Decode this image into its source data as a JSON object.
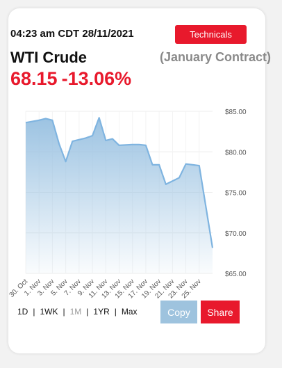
{
  "header": {
    "timestamp": "04:23 am CDT 28/11/2021",
    "technicals_label": "Technicals",
    "instrument": "WTI Crude",
    "contract": "(January Contract)",
    "price": "68.15",
    "change": "-13.06%"
  },
  "ranges": [
    "1D",
    "1WK",
    "1M",
    "1YR",
    "Max"
  ],
  "active_range": "1M",
  "actions": {
    "copy_label": "Copy",
    "share_label": "Share"
  },
  "colors": {
    "accent": "#e8192c",
    "line": "#7fb4e0",
    "fill_top": "#9cc3e2",
    "copy": "#9ec3de"
  },
  "chart_data": {
    "type": "area",
    "x_tick_labels": [
      "30. Oct",
      "1. Nov",
      "3. Nov",
      "5. Nov",
      "7. Nov",
      "9. Nov",
      "11. Nov",
      "13. Nov",
      "15. Nov",
      "17. Nov",
      "19. Nov",
      "21. Nov",
      "23. Nov",
      "25. Nov"
    ],
    "y_tick_labels": [
      "$85.00",
      "$80.00",
      "$75.00",
      "$70.00",
      "$65.00"
    ],
    "ylim": [
      65,
      85
    ],
    "xlim": [
      "2021-10-30",
      "2021-11-27"
    ],
    "points": [
      {
        "x": "2021-10-30",
        "y": 83.6
      },
      {
        "x": "2021-11-01",
        "y": 83.9
      },
      {
        "x": "2021-11-02",
        "y": 84.1
      },
      {
        "x": "2021-11-03",
        "y": 83.9
      },
      {
        "x": "2021-11-04",
        "y": 81.0
      },
      {
        "x": "2021-11-05",
        "y": 78.8
      },
      {
        "x": "2021-11-06",
        "y": 81.3
      },
      {
        "x": "2021-11-08",
        "y": 81.7
      },
      {
        "x": "2021-11-09",
        "y": 82.0
      },
      {
        "x": "2021-11-10",
        "y": 84.2
      },
      {
        "x": "2021-11-11",
        "y": 81.4
      },
      {
        "x": "2021-11-12",
        "y": 81.6
      },
      {
        "x": "2021-11-13",
        "y": 80.8
      },
      {
        "x": "2021-11-15",
        "y": 80.9
      },
      {
        "x": "2021-11-16",
        "y": 80.9
      },
      {
        "x": "2021-11-17",
        "y": 80.8
      },
      {
        "x": "2021-11-18",
        "y": 78.4
      },
      {
        "x": "2021-11-19",
        "y": 78.4
      },
      {
        "x": "2021-11-20",
        "y": 76.0
      },
      {
        "x": "2021-11-22",
        "y": 76.8
      },
      {
        "x": "2021-11-23",
        "y": 78.5
      },
      {
        "x": "2021-11-24",
        "y": 78.4
      },
      {
        "x": "2021-11-25",
        "y": 78.3
      },
      {
        "x": "2021-11-27",
        "y": 68.15
      }
    ],
    "grid": true
  }
}
